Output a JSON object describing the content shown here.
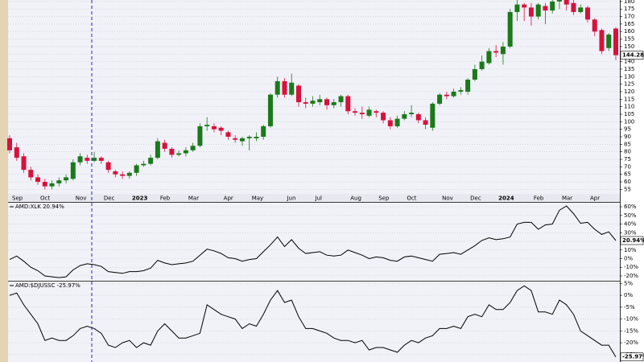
{
  "chart_data": [
    {
      "type": "candlestick",
      "categories": [
        "Sep",
        null,
        null,
        null,
        "Oct",
        null,
        null,
        null,
        null,
        "Nov",
        null,
        null,
        null,
        "Dec",
        null,
        null,
        null,
        "2023",
        null,
        null,
        null,
        "Feb",
        null,
        null,
        null,
        "Mar",
        null,
        null,
        null,
        null,
        "Apr",
        null,
        null,
        null,
        "May",
        null,
        null,
        null,
        null,
        "Jun",
        null,
        null,
        null,
        "Jul",
        null,
        null,
        null,
        null,
        "Aug",
        null,
        null,
        null,
        "Sep",
        null,
        null,
        null,
        "Oct",
        null,
        null,
        null,
        null,
        "Nov",
        null,
        null,
        null,
        "Dec",
        null,
        null,
        null,
        "2024",
        null,
        null,
        null,
        null,
        "Feb",
        null,
        null,
        null,
        "Mar",
        null,
        null,
        null,
        "Apr",
        null,
        null,
        null,
        null
      ],
      "open": [
        89,
        83,
        77,
        68,
        63,
        60,
        57,
        59,
        61,
        62,
        73,
        76,
        74,
        76,
        73,
        67,
        65,
        64,
        66,
        71,
        72,
        76,
        86,
        82,
        78,
        79,
        81,
        84,
        97,
        97,
        96,
        93,
        89,
        87,
        89,
        89,
        90,
        97,
        118,
        127,
        118,
        124,
        113,
        112,
        113,
        115,
        111,
        113,
        117,
        107,
        106,
        104,
        107,
        106,
        101,
        97,
        102,
        105,
        105,
        101,
        96,
        112,
        118,
        117,
        120,
        120,
        128,
        135,
        139,
        147,
        145,
        150,
        173,
        178,
        176,
        170,
        177,
        174,
        180,
        181,
        179,
        173,
        176,
        168,
        161,
        149,
        162
      ],
      "high": [
        91,
        86,
        79,
        70,
        65,
        62,
        61,
        63,
        65,
        75,
        79,
        78,
        80,
        77,
        74,
        68,
        67,
        67,
        72,
        74,
        78,
        89,
        88,
        83,
        81,
        83,
        86,
        99,
        103,
        99,
        97,
        94,
        91,
        90,
        91,
        93,
        98,
        119,
        130,
        129,
        132,
        125,
        116,
        117,
        118,
        116,
        115,
        118,
        118,
        109,
        110,
        110,
        108,
        107,
        103,
        104,
        107,
        111,
        106,
        103,
        113,
        119,
        120,
        122,
        123,
        129,
        138,
        144,
        149,
        151,
        153,
        175,
        181,
        179,
        179,
        179,
        179,
        181,
        181,
        181,
        181,
        178,
        177,
        169,
        162,
        159,
        163
      ],
      "low": [
        79,
        74,
        66,
        61,
        58,
        55,
        55,
        57,
        59,
        61,
        71,
        72,
        73,
        72,
        66,
        63,
        62,
        62,
        64,
        70,
        71,
        75,
        80,
        76,
        77,
        77,
        80,
        83,
        94,
        93,
        91,
        88,
        86,
        84,
        81,
        87,
        88,
        96,
        116,
        116,
        117,
        110,
        109,
        110,
        111,
        108,
        109,
        110,
        105,
        104,
        102,
        103,
        103,
        99,
        95,
        96,
        101,
        103,
        99,
        95,
        94,
        111,
        115,
        116,
        118,
        118,
        127,
        134,
        138,
        143,
        138,
        149,
        167,
        167,
        164,
        168,
        165,
        172,
        175,
        174,
        171,
        172,
        166,
        157,
        145,
        147,
        141
      ],
      "close": [
        81,
        76,
        68,
        63,
        60,
        57,
        59,
        61,
        63,
        73,
        77,
        74,
        76,
        74,
        68,
        65,
        64,
        66,
        71,
        72,
        76,
        87,
        82,
        78,
        79,
        81,
        84,
        97,
        98,
        95,
        94,
        90,
        88,
        89,
        90,
        90,
        97,
        118,
        127,
        118,
        126,
        113,
        112,
        114,
        115,
        111,
        113,
        117,
        107,
        106,
        105,
        108,
        106,
        101,
        97,
        102,
        105,
        106,
        101,
        98,
        112,
        118,
        117,
        120,
        121,
        128,
        135,
        140,
        147,
        146,
        150,
        173,
        178,
        176,
        170,
        178,
        174,
        180,
        181,
        178,
        173,
        176,
        168,
        160,
        147,
        158,
        144.28
      ],
      "up_color": "#1a7a1a",
      "down_color": "#d6123c",
      "ylim": [
        52,
        181
      ],
      "yticks": [
        55,
        60,
        65,
        70,
        75,
        80,
        85,
        90,
        95,
        100,
        105,
        110,
        115,
        120,
        125,
        130,
        135,
        140,
        145,
        150,
        155,
        160,
        165,
        170,
        175,
        180
      ],
      "grid": true
    },
    {
      "type": "line",
      "series": [
        {
          "name": "AMD:XLK 20.94%",
          "color": "#000000",
          "values": [
            -1,
            3,
            -3,
            -10,
            -14,
            -20,
            -21,
            -22,
            -21,
            -13,
            -8,
            -6,
            -7,
            -9,
            -15,
            -16,
            -17,
            -15,
            -15,
            -14,
            -11,
            -2,
            -5,
            -7,
            -6,
            -5,
            -3,
            4,
            11,
            9,
            6,
            1,
            0,
            -3,
            -1,
            0,
            8,
            16,
            25,
            14,
            22,
            12,
            6,
            7,
            8,
            4,
            3,
            4,
            10,
            7,
            4,
            0,
            2,
            1,
            -2,
            -3,
            2,
            3,
            1,
            -1,
            -3,
            5,
            6,
            7,
            5,
            10,
            15,
            21,
            24,
            22,
            23,
            25,
            40,
            42,
            42,
            34,
            39,
            40,
            56,
            61,
            52,
            41,
            42,
            34,
            28,
            31,
            20.94
          ],
          "value_labels": [
            null,
            null,
            null,
            null,
            null,
            null,
            null,
            null,
            null,
            null,
            null,
            null,
            null,
            null,
            null,
            null,
            null,
            null,
            null,
            null,
            null,
            null,
            null,
            null,
            null,
            null,
            null,
            null,
            null,
            null,
            null,
            null,
            null,
            null,
            null,
            null,
            null,
            null,
            null,
            null,
            null,
            null,
            null,
            null,
            null,
            null,
            null,
            null,
            null,
            null,
            null,
            null,
            null,
            null,
            null,
            null,
            null,
            null,
            null,
            null,
            null,
            null,
            null,
            null,
            null,
            null,
            null,
            null,
            null,
            null,
            null,
            null,
            null,
            null,
            null,
            null,
            null,
            null,
            null,
            null,
            null,
            null,
            null,
            null,
            null,
            null,
            "20.94%"
          ]
        }
      ],
      "ylim": [
        -25.6,
        64.7
      ],
      "yticks": [
        {
          "value": 60,
          "label": "60%"
        },
        {
          "value": 50,
          "label": "50%"
        },
        {
          "value": 40,
          "label": "40%"
        },
        {
          "value": 30,
          "label": "30%"
        },
        {
          "value": 20,
          "label": "20%"
        },
        {
          "value": 10,
          "label": "10%"
        },
        {
          "value": 0,
          "label": "0%"
        },
        {
          "value": -10,
          "label": "-10%"
        },
        {
          "value": -20,
          "label": "-20%"
        }
      ],
      "grid": true
    },
    {
      "type": "line",
      "series": [
        {
          "name": "AMD:$DJUSSC -25.97%",
          "color": "#000000",
          "values": [
            0,
            1,
            -4,
            -8,
            -12,
            -19,
            -18,
            -19,
            -19,
            -17,
            -14,
            -13,
            -14,
            -16,
            -21,
            -22,
            -20,
            -19,
            -22,
            -20,
            -21,
            -15,
            -12,
            -15,
            -18,
            -18,
            -17,
            -16,
            -4,
            -6,
            -8,
            -9,
            -10,
            -14,
            -12,
            -13,
            -8,
            -2,
            2,
            -3,
            -2,
            -9,
            -14,
            -14,
            -15,
            -16,
            -18,
            -19,
            -19,
            -20,
            -19,
            -23,
            -22,
            -22,
            -23,
            -24,
            -21,
            -19,
            -20,
            -18,
            -17,
            -14,
            -14,
            -13,
            -14,
            -9,
            -8,
            -9,
            -4,
            -6,
            -6,
            -3,
            2,
            4,
            2,
            -7,
            -7,
            -8,
            -2,
            -4,
            -8,
            -15,
            -17,
            -19,
            -21,
            -21,
            -25.97
          ],
          "value_labels": [
            null,
            null,
            null,
            null,
            null,
            null,
            null,
            null,
            null,
            null,
            null,
            null,
            null,
            null,
            null,
            null,
            null,
            null,
            null,
            null,
            null,
            null,
            null,
            null,
            null,
            null,
            null,
            null,
            null,
            null,
            null,
            null,
            null,
            null,
            null,
            null,
            null,
            null,
            null,
            null,
            null,
            null,
            null,
            null,
            null,
            null,
            null,
            null,
            null,
            null,
            null,
            null,
            null,
            null,
            null,
            null,
            null,
            null,
            null,
            null,
            null,
            null,
            null,
            null,
            null,
            null,
            null,
            null,
            null,
            null,
            null,
            null,
            null,
            null,
            null,
            null,
            null,
            null,
            null,
            null,
            null,
            null,
            null,
            null,
            null,
            null,
            "-25.97%"
          ]
        }
      ],
      "ylim": [
        -28.1,
        5.8
      ],
      "yticks": [
        {
          "value": 5,
          "label": "5%"
        },
        {
          "value": 0,
          "label": "0%"
        },
        {
          "value": -5,
          "label": "-5%"
        },
        {
          "value": -10,
          "label": "-10%"
        },
        {
          "value": -15,
          "label": "-15%"
        },
        {
          "value": -20,
          "label": "-20%"
        },
        {
          "value": -25,
          "label": "-25%"
        }
      ],
      "grid": true
    }
  ]
}
